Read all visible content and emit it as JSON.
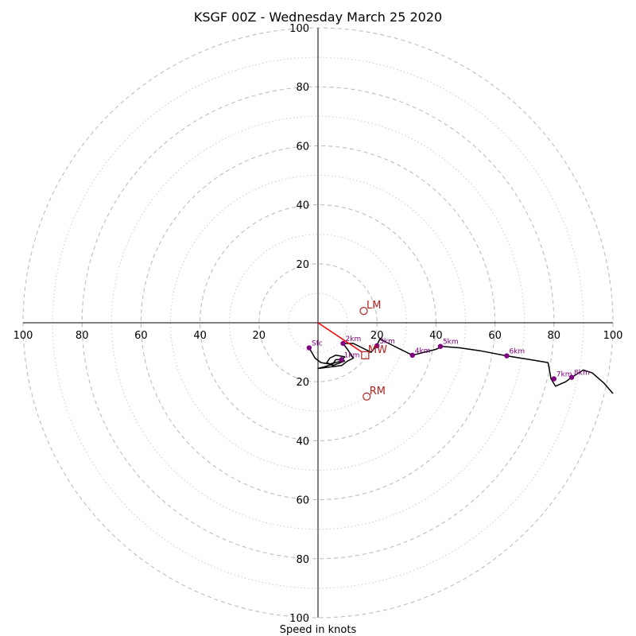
{
  "chart_data": {
    "type": "hodograph",
    "title": "KSGF 00Z - Wednesday March 25 2020",
    "xlabel": "Speed in knots",
    "axis_max": 100,
    "major_ring_step": 20,
    "minor_ring_step": 10,
    "tick_values": [
      20,
      40,
      60,
      80,
      100
    ],
    "colors": {
      "hodograph": "#000000",
      "height_markers": "#800080",
      "storm_motion": "#b22222",
      "shear_vector": "#ff0000",
      "major_rings": "#bdbdbd",
      "minor_rings": "#cccccc",
      "axes": "#000000"
    },
    "hodograph_trace": [
      [
        -3,
        -8.5
      ],
      [
        -1,
        -12
      ],
      [
        1,
        -13.5
      ],
      [
        4,
        -14
      ],
      [
        8,
        -13
      ],
      [
        9,
        -11.5
      ],
      [
        6,
        -11
      ],
      [
        4,
        -12
      ],
      [
        3,
        -13.5
      ],
      [
        5,
        -14.5
      ],
      [
        9,
        -13
      ],
      [
        8.5,
        -12.5
      ],
      [
        6,
        -12.5
      ],
      [
        5,
        -14
      ],
      [
        2,
        -15
      ],
      [
        0,
        -15.5
      ],
      [
        4,
        -15
      ],
      [
        8,
        -14.5
      ],
      [
        10,
        -13
      ],
      [
        12,
        -12
      ],
      [
        10,
        -9
      ],
      [
        8.5,
        -7
      ],
      [
        12,
        -7
      ],
      [
        16,
        -9
      ],
      [
        18,
        -10
      ],
      [
        20,
        -7.5
      ],
      [
        21,
        -5.5
      ],
      [
        24,
        -7
      ],
      [
        28,
        -9
      ],
      [
        32,
        -11
      ],
      [
        36,
        -10
      ],
      [
        40,
        -9
      ],
      [
        42,
        -8
      ],
      [
        48,
        -8.5
      ],
      [
        55,
        -9.5
      ],
      [
        64,
        -11.2
      ],
      [
        72,
        -12.5
      ],
      [
        78,
        -13.5
      ],
      [
        79,
        -19
      ],
      [
        80.5,
        -21.5
      ],
      [
        84,
        -20
      ],
      [
        86,
        -18.5
      ],
      [
        90,
        -16
      ],
      [
        93,
        -17
      ],
      [
        97,
        -20.5
      ],
      [
        100,
        -24
      ]
    ],
    "height_markers": [
      {
        "label": "Sfc",
        "u": -3,
        "v": -8.5
      },
      {
        "label": "1km",
        "u": 8,
        "v": -12.5
      },
      {
        "label": "2km",
        "u": 8.5,
        "v": -7
      },
      {
        "label": "3km",
        "u": 20,
        "v": -7.8
      },
      {
        "label": "4km",
        "u": 32,
        "v": -11
      },
      {
        "label": "5km",
        "u": 41.5,
        "v": -8
      },
      {
        "label": "6km",
        "u": 64,
        "v": -11.2
      },
      {
        "label": "7km",
        "u": 80,
        "v": -19
      },
      {
        "label": "8km",
        "u": 86,
        "v": -18.5
      }
    ],
    "storm_motions": [
      {
        "label": "LM",
        "u": 15.5,
        "v": 4,
        "marker": "circle"
      },
      {
        "label": "MW",
        "u": 16,
        "v": -11,
        "marker": "square"
      },
      {
        "label": "RM",
        "u": 16.5,
        "v": -25,
        "marker": "circle"
      }
    ],
    "shear_vector": {
      "from": [
        0,
        0
      ],
      "to": [
        15,
        -10
      ]
    }
  }
}
